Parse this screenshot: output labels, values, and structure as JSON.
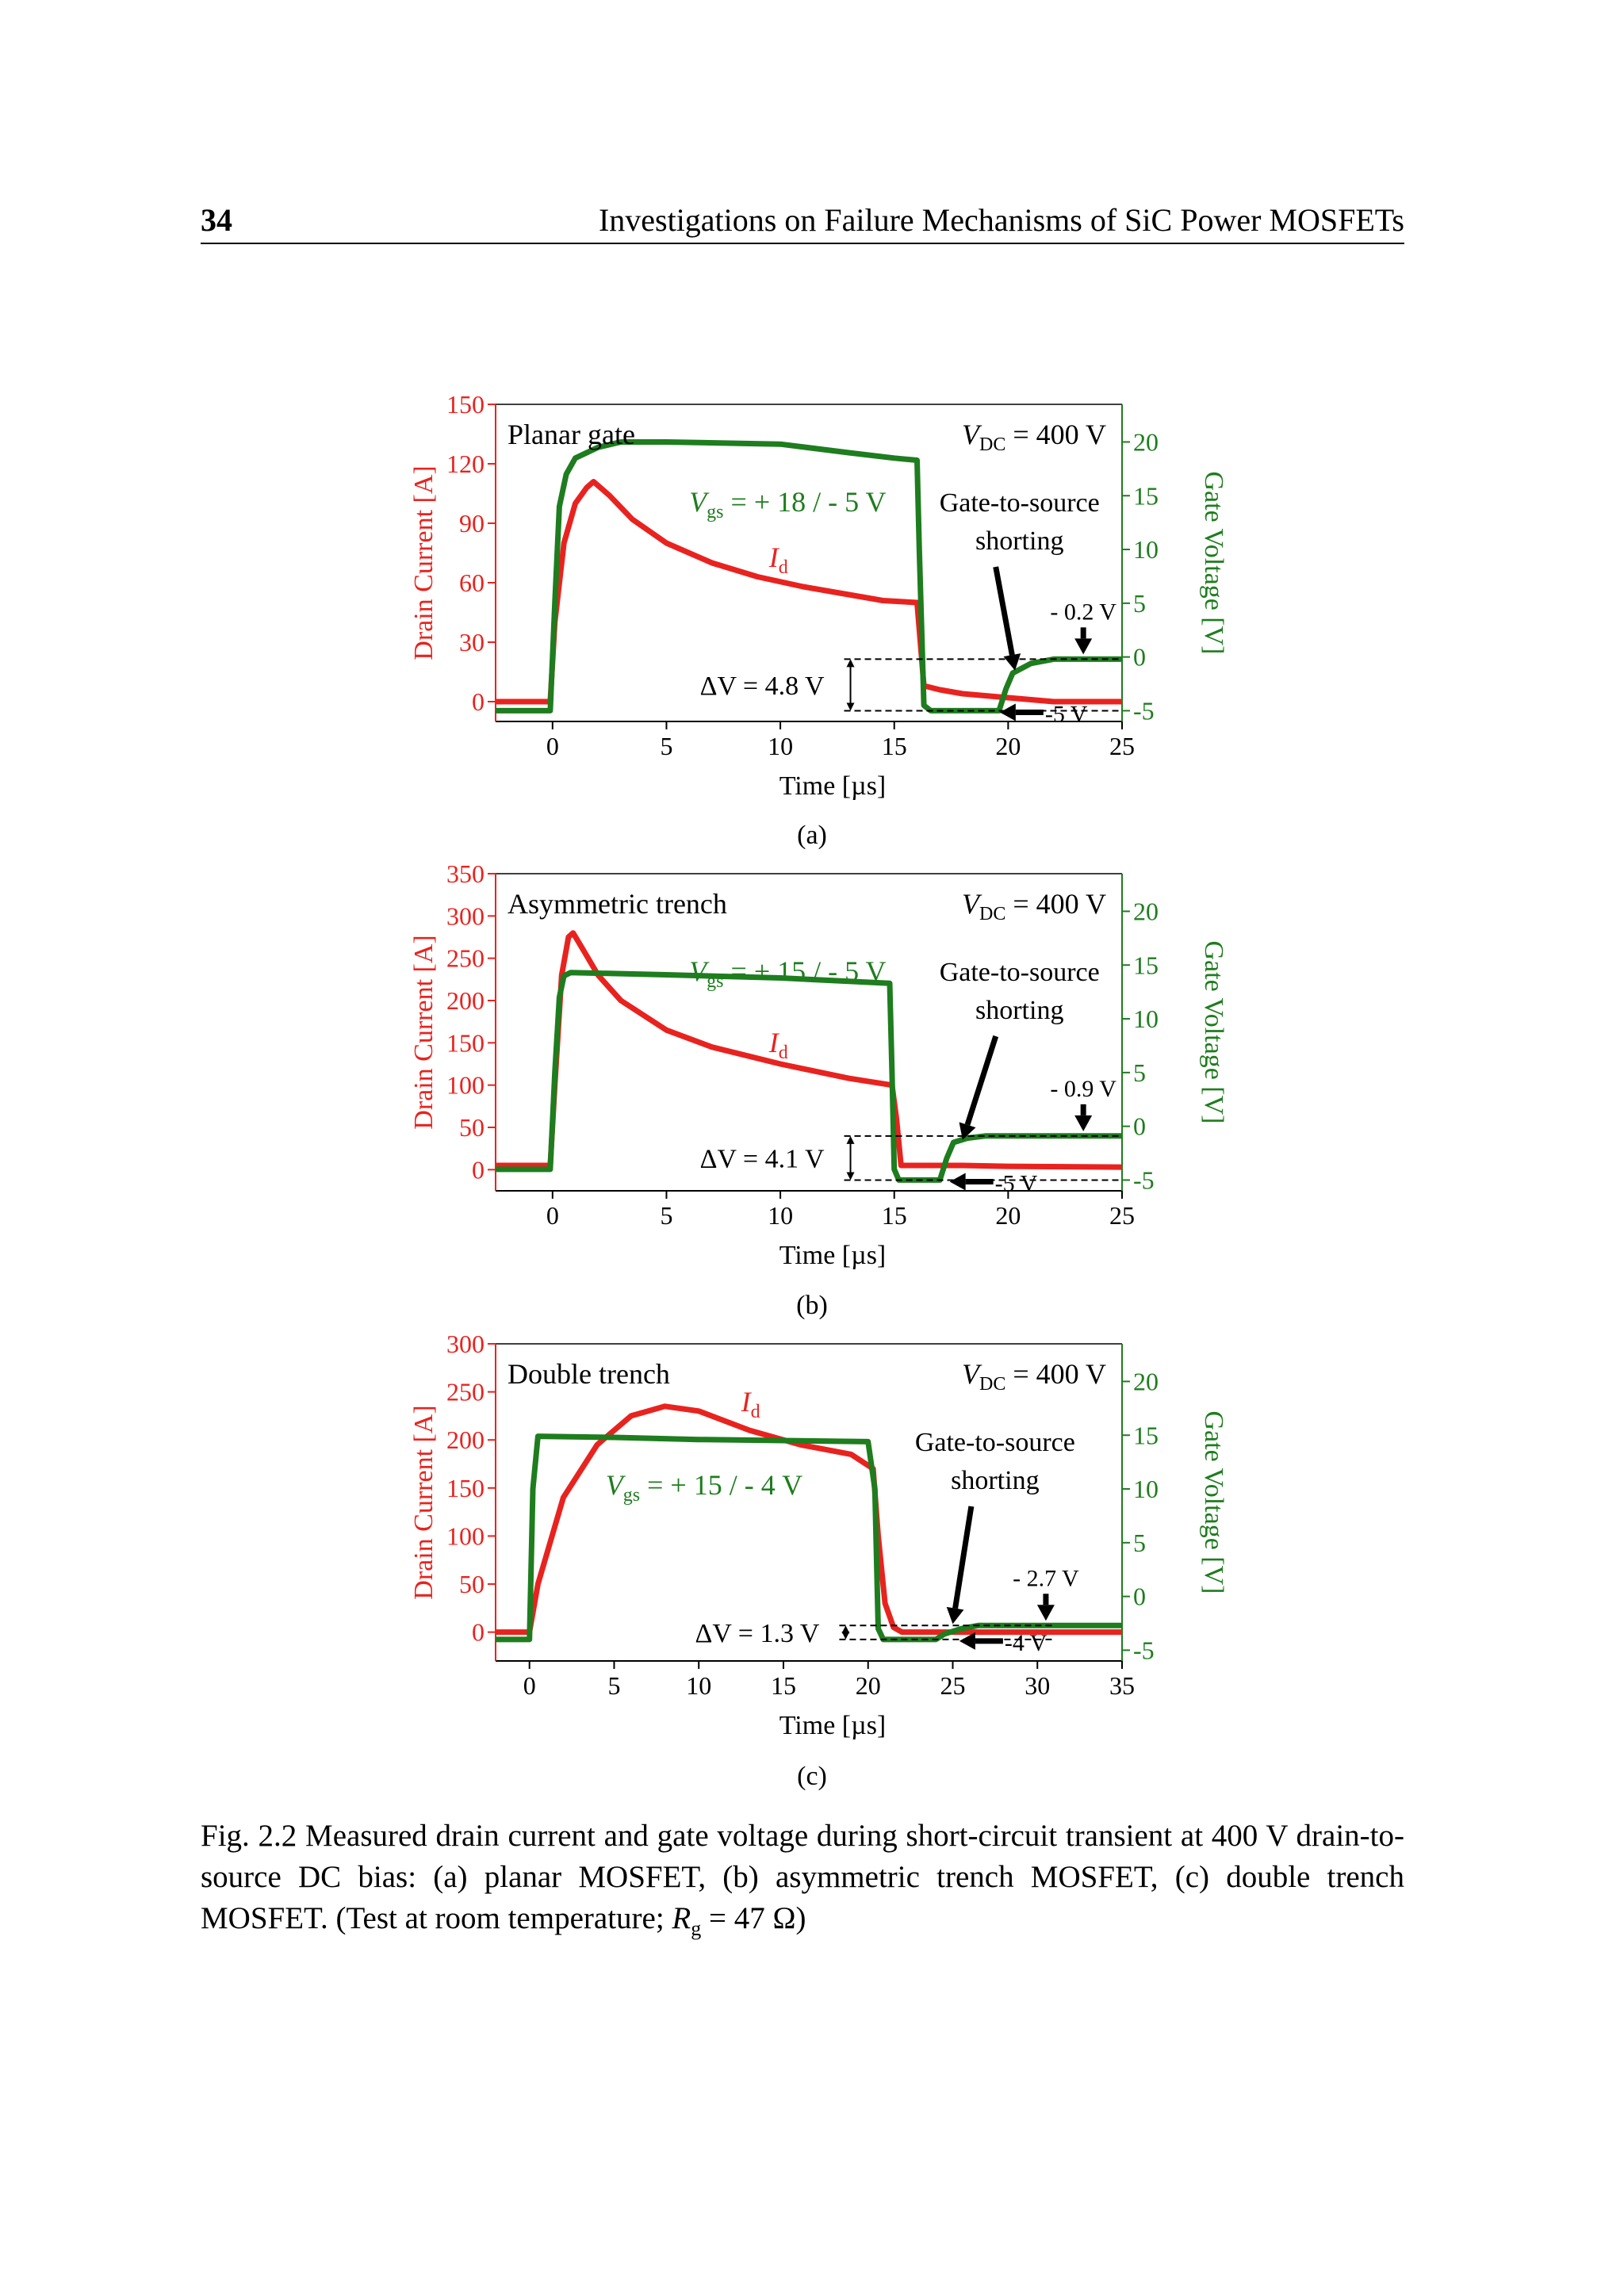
{
  "header": {
    "page_number": "34",
    "running_title": "Investigations on Failure Mechanisms of SiC Power MOSFETs"
  },
  "colors": {
    "drain_current": "#e8231f",
    "gate_voltage": "#1e7d1e",
    "annotation": "#000000"
  },
  "chart_data": [
    {
      "type": "line",
      "panel_label": "(a)",
      "title": "Planar gate",
      "vdc_label": {
        "symbol": "V",
        "sub": "DC",
        "rest": " = 400 V"
      },
      "xlabel": "Time [µs]",
      "ylabel_left": "Drain Current [A]",
      "ylabel_right": "Gate Voltage [V]",
      "xlim": [
        -2.5,
        25
      ],
      "ylim_left": [
        -10,
        150
      ],
      "ylim_right": [
        -6,
        23.5
      ],
      "xticks": [
        0,
        5,
        10,
        15,
        20,
        25
      ],
      "yticks_left": [
        0,
        30,
        60,
        90,
        120,
        150
      ],
      "yticks_right": [
        -5,
        0,
        5,
        10,
        15,
        20
      ],
      "vgs_label": {
        "symbol": "V",
        "sub": "gs",
        "rest": " = + 18 / - 5 V"
      },
      "id_label": {
        "symbol": "I",
        "sub": "d"
      },
      "shorting_label": [
        "Gate-to-source",
        "shorting"
      ],
      "delta_v_label": "ΔV = 4.8 V",
      "vgs_high_label": "- 0.2 V",
      "vgs_low_label": "-5 V",
      "series": [
        {
          "name": "Id",
          "axis": "left",
          "color": "#e8231f",
          "x": [
            -2.5,
            -0.1,
            0.1,
            0.5,
            1.0,
            1.5,
            1.8,
            2.5,
            3.5,
            5,
            7,
            9,
            11,
            13,
            14.5,
            16.0,
            16.3,
            17,
            18,
            20,
            22,
            25
          ],
          "y": [
            0,
            0,
            40,
            80,
            100,
            108,
            111,
            104,
            92,
            80,
            70,
            63,
            58,
            54,
            51,
            50,
            8,
            6,
            4,
            2,
            0,
            0
          ]
        },
        {
          "name": "Vgs",
          "axis": "right",
          "color": "#1e7d1e",
          "x": [
            -2.5,
            -0.1,
            0.1,
            0.3,
            0.6,
            1.0,
            2.0,
            3.0,
            5,
            10,
            13,
            15,
            16.0,
            16.1,
            16.3,
            16.6,
            19.6,
            19.9,
            20.2,
            21.0,
            22,
            25
          ],
          "y": [
            -5,
            -5,
            5,
            14,
            17,
            18.5,
            19.5,
            20,
            20,
            19.8,
            19,
            18.5,
            18.3,
            10,
            -4.5,
            -5,
            -5,
            -3,
            -1.5,
            -0.6,
            -0.2,
            -0.2
          ]
        }
      ]
    },
    {
      "type": "line",
      "panel_label": "(b)",
      "title": "Asymmetric trench",
      "vdc_label": {
        "symbol": "V",
        "sub": "DC",
        "rest": " = 400 V"
      },
      "xlabel": "Time [µs]",
      "ylabel_left": "Drain Current [A]",
      "ylabel_right": "Gate Voltage [V]",
      "xlim": [
        -2.5,
        25
      ],
      "ylim_left": [
        -25,
        350
      ],
      "ylim_right": [
        -6,
        23.5
      ],
      "xticks": [
        0,
        5,
        10,
        15,
        20,
        25
      ],
      "yticks_left": [
        0,
        50,
        100,
        150,
        200,
        250,
        300,
        350
      ],
      "yticks_right": [
        -5,
        0,
        5,
        10,
        15,
        20
      ],
      "vgs_label": {
        "symbol": "V",
        "sub": "gs",
        "rest": " = + 15 / - 5 V"
      },
      "id_label": {
        "symbol": "I",
        "sub": "d"
      },
      "shorting_label": [
        "Gate-to-source",
        "shorting"
      ],
      "delta_v_label": "ΔV = 4.1 V",
      "vgs_high_label": "- 0.9 V",
      "vgs_low_label": "-5 V",
      "series": [
        {
          "name": "Id",
          "axis": "left",
          "color": "#e8231f",
          "x": [
            -2.5,
            -0.1,
            0.1,
            0.4,
            0.7,
            0.9,
            1.3,
            2,
            3,
            5,
            7,
            10,
            13,
            14.9,
            15.1,
            15.3,
            16,
            18,
            20,
            25
          ],
          "y": [
            5,
            5,
            100,
            230,
            275,
            280,
            262,
            230,
            200,
            165,
            145,
            125,
            108,
            100,
            60,
            5,
            5,
            5,
            4,
            3
          ]
        },
        {
          "name": "Vgs",
          "axis": "right",
          "color": "#1e7d1e",
          "x": [
            -2.5,
            -0.1,
            0.1,
            0.3,
            0.5,
            0.8,
            5,
            10,
            14.8,
            14.9,
            15.0,
            15.2,
            17.0,
            17.3,
            17.6,
            18.2,
            19,
            25
          ],
          "y": [
            -4,
            -4,
            5,
            12,
            14,
            14.3,
            14.1,
            13.8,
            13.3,
            5,
            -4,
            -5,
            -5,
            -3,
            -1.5,
            -1.1,
            -0.9,
            -0.9
          ]
        }
      ]
    },
    {
      "type": "line",
      "panel_label": "(c)",
      "title": "Double trench",
      "vdc_label": {
        "symbol": "V",
        "sub": "DC",
        "rest": " = 400 V"
      },
      "xlabel": "Time [µs]",
      "ylabel_left": "Drain Current [A]",
      "ylabel_right": "Gate Voltage [V]",
      "xlim": [
        -2,
        35
      ],
      "ylim_left": [
        -30,
        300
      ],
      "ylim_right": [
        -6,
        23.5
      ],
      "xticks": [
        0,
        5,
        10,
        15,
        20,
        25,
        30,
        35
      ],
      "yticks_left": [
        0,
        50,
        100,
        150,
        200,
        250,
        300
      ],
      "yticks_right": [
        -5,
        0,
        5,
        10,
        15,
        20
      ],
      "vgs_label": {
        "symbol": "V",
        "sub": "gs",
        "rest": " = + 15 / - 4 V"
      },
      "id_label": {
        "symbol": "I",
        "sub": "d"
      },
      "shorting_label": [
        "Gate-to-source",
        "shorting"
      ],
      "delta_v_label": "ΔV = 1.3 V",
      "vgs_high_label": "- 2.7 V",
      "vgs_low_label": "-4 V",
      "series": [
        {
          "name": "Id",
          "axis": "left",
          "color": "#e8231f",
          "x": [
            -2,
            0,
            0.5,
            2,
            4,
            6,
            8,
            10,
            13,
            16,
            19,
            20.3,
            20.6,
            21,
            21.5,
            22,
            25,
            30,
            35
          ],
          "y": [
            0,
            0,
            50,
            140,
            195,
            225,
            235,
            230,
            210,
            195,
            185,
            170,
            100,
            30,
            5,
            0,
            0,
            0,
            0
          ]
        },
        {
          "name": "Vgs",
          "axis": "right",
          "color": "#1e7d1e",
          "x": [
            -2,
            0,
            0.2,
            0.5,
            5,
            10,
            15,
            20,
            20.4,
            20.6,
            20.9,
            24.0,
            24.5,
            25.5,
            26.5,
            30,
            35
          ],
          "y": [
            -4,
            -4,
            10,
            14.9,
            14.8,
            14.6,
            14.5,
            14.4,
            10,
            -3,
            -4,
            -4,
            -3.5,
            -3,
            -2.7,
            -2.7,
            -2.7
          ]
        }
      ]
    }
  ],
  "caption": {
    "prefix": "Fig. 2.2 ",
    "text": "Measured drain current and gate voltage during short-circuit transient at 400 V drain-to-source DC bias: (a) planar MOSFET, (b) asymmetric trench MOSFET, (c) double trench MOSFET. (Test at room temperature; ",
    "rg_symbol": "R",
    "rg_sub": "g",
    "rg_rest": " = 47 Ω)"
  }
}
